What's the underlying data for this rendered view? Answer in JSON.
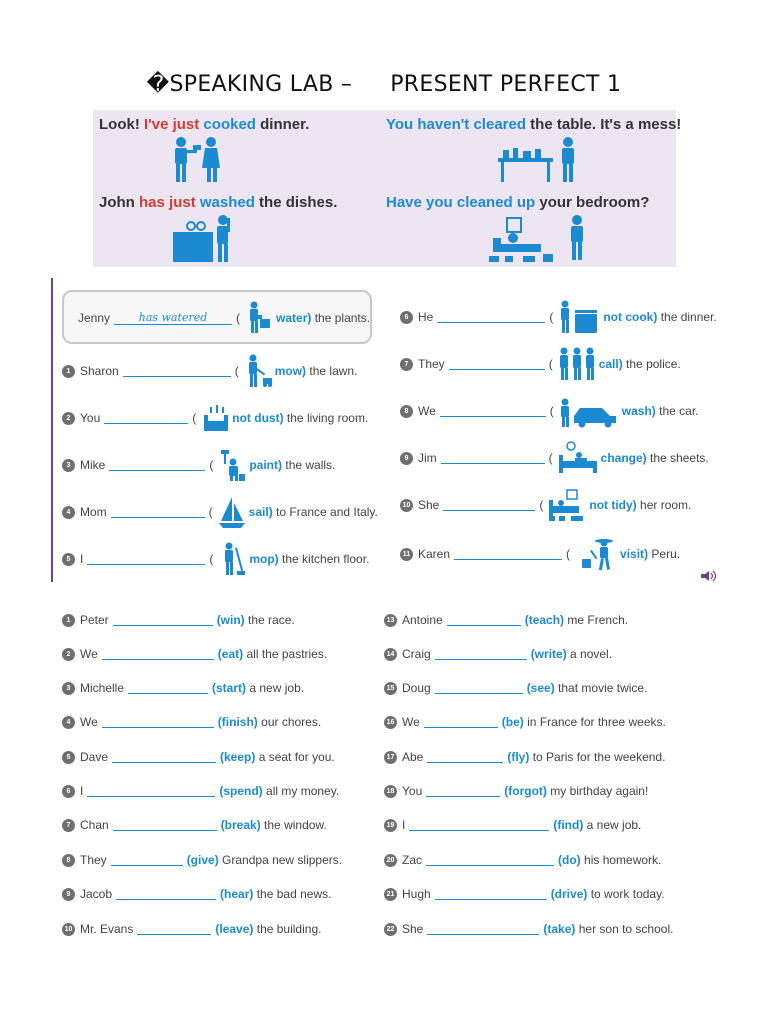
{
  "title": {
    "prefix": "SPEAKING LAB –",
    "suffix": "PRESENT PERFECT 1"
  },
  "banner": {
    "ex1": {
      "a": "Look! ",
      "b": "I've ",
      "c": "just",
      "d": " cooked",
      "e": " dinner."
    },
    "ex2": {
      "a": "You haven't cleared",
      "b": " the table. It's a mess!"
    },
    "ex3": {
      "a": "John ",
      "b": "has",
      "c": " just",
      "d": " washed",
      "e": " the dishes."
    },
    "ex4": {
      "a": "Have you cleaned up",
      "b": " your bedroom?"
    }
  },
  "section1": {
    "example": {
      "subject": "Jenny",
      "answer": "has watered",
      "verb": "water)",
      "rest": "the plants."
    },
    "left": [
      {
        "n": "1",
        "subject": "Sharon",
        "verb": "mow)",
        "rest": "the lawn.",
        "icon": "mowing-icon"
      },
      {
        "n": "2",
        "subject": "You",
        "verb": "not dust)",
        "rest": "the living room.",
        "icon": "dusting-icon"
      },
      {
        "n": "3",
        "subject": "Mike",
        "verb": "paint)",
        "rest": "the walls.",
        "icon": "painting-icon"
      },
      {
        "n": "4",
        "subject": "Mom",
        "verb": "sail)",
        "rest": "to France and Italy.",
        "icon": "sailboat-icon"
      },
      {
        "n": "5",
        "subject": "I",
        "verb": "mop)",
        "rest": "the kitchen floor.",
        "icon": "mopping-icon"
      }
    ],
    "right": [
      {
        "n": "6",
        "subject": "He",
        "verb": "not cook)",
        "rest": "the dinner.",
        "icon": "cooking-icon"
      },
      {
        "n": "7",
        "subject": "They",
        "verb": "call)",
        "rest": "the police.",
        "icon": "people-icon"
      },
      {
        "n": "8",
        "subject": "We",
        "verb": "wash)",
        "rest": "the car.",
        "icon": "car-wash-icon"
      },
      {
        "n": "9",
        "subject": "Jim",
        "verb": "change)",
        "rest": "the sheets.",
        "icon": "bed-icon"
      },
      {
        "n": "10",
        "subject": "She",
        "verb": "not tidy)",
        "rest": "her room.",
        "icon": "messy-room-icon"
      },
      {
        "n": "11",
        "subject": "Karen",
        "verb": "visit)",
        "rest": "Peru.",
        "icon": "traveler-icon"
      }
    ]
  },
  "section2": {
    "left": [
      {
        "n": "1",
        "subject": "Peter",
        "verb": "(win)",
        "rest": "the race."
      },
      {
        "n": "2",
        "subject": "We",
        "verb": "(eat)",
        "rest": "all the pastries."
      },
      {
        "n": "3",
        "subject": "Michelle",
        "verb": "(start)",
        "rest": "a new job."
      },
      {
        "n": "4",
        "subject": "We",
        "verb": "(finish)",
        "rest": "our chores."
      },
      {
        "n": "5",
        "subject": "Dave",
        "verb": "(keep)",
        "rest": "a seat for you."
      },
      {
        "n": "6",
        "subject": "I",
        "verb": "(spend)",
        "rest": "all my money."
      },
      {
        "n": "7",
        "subject": "Chan",
        "verb": "(break)",
        "rest": "the window."
      },
      {
        "n": "8",
        "subject": "They",
        "verb": "(give)",
        "rest": "Grandpa new slippers."
      },
      {
        "n": "9",
        "subject": "Jacob",
        "verb": "(hear)",
        "rest": "the bad news."
      },
      {
        "n": "10",
        "subject": "Mr. Evans",
        "verb": "(leave)",
        "rest": "the building."
      }
    ],
    "right": [
      {
        "n": "13",
        "subject": "Antoine",
        "verb": "(teach)",
        "rest": "me French."
      },
      {
        "n": "14",
        "subject": "Craig",
        "verb": "(write)",
        "rest": "a novel."
      },
      {
        "n": "15",
        "subject": "Doug",
        "verb": "(see)",
        "rest": "that movie twice."
      },
      {
        "n": "16",
        "subject": "We",
        "verb": "(be)",
        "rest": "in France for three weeks."
      },
      {
        "n": "17",
        "subject": "Abe",
        "verb": "(fly)",
        "rest": "to Paris for the weekend."
      },
      {
        "n": "18",
        "subject": "You",
        "verb": "(forgot)",
        "rest": "my birthday again!"
      },
      {
        "n": "19",
        "subject": "I",
        "verb": "(find)",
        "rest": "a new job."
      },
      {
        "n": "20",
        "subject": "Zac",
        "verb": "(do)",
        "rest": "his homework."
      },
      {
        "n": "21",
        "subject": "Hugh",
        "verb": "(drive)",
        "rest": "to work today."
      },
      {
        "n": "22",
        "subject": "She",
        "verb": "(take)",
        "rest": "her son to school."
      }
    ]
  },
  "colors": {
    "accent": "#1b8ad1",
    "highlight": "#d63b2f",
    "banner_bg": "#ede5f2",
    "number_badge": "#6f6f6f"
  }
}
